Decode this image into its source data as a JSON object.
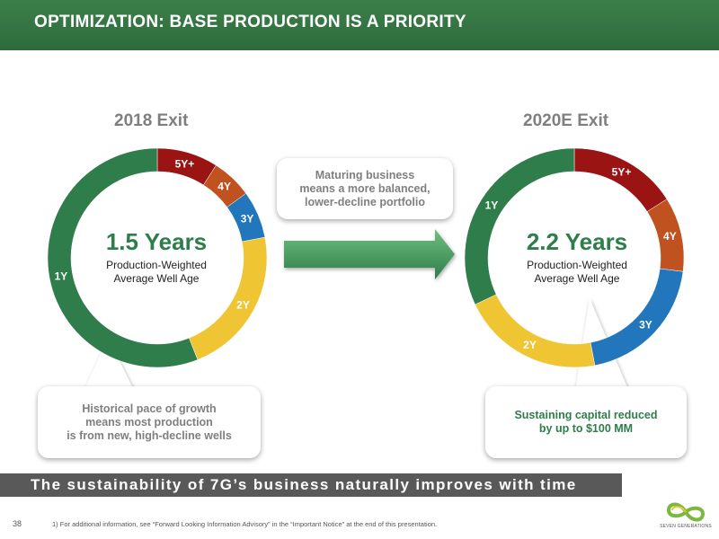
{
  "header": {
    "title": "OPTIMIZATION: BASE PRODUCTION IS A PRIORITY"
  },
  "chart_data": [
    {
      "type": "pie",
      "title": "2018 Exit",
      "categories": [
        "5Y+",
        "4Y",
        "3Y",
        "2Y",
        "1Y"
      ],
      "values": [
        9,
        6,
        7,
        22,
        56
      ],
      "colors": [
        "#9b1414",
        "#c0521f",
        "#2276bb",
        "#f0c534",
        "#2e7d4a"
      ],
      "center_value": "1.5 Years",
      "center_label": [
        "Production-Weighted",
        "Average Well Age"
      ]
    },
    {
      "type": "pie",
      "title": "2020E Exit",
      "categories": [
        "5Y+",
        "4Y",
        "3Y",
        "2Y",
        "1Y"
      ],
      "values": [
        16,
        11,
        20,
        21,
        32
      ],
      "colors": [
        "#9b1414",
        "#c0521f",
        "#2276bb",
        "#f0c534",
        "#2e7d4a"
      ],
      "center_value": "2.2 Years",
      "center_label": [
        "Production-Weighted",
        "Average Well Age"
      ]
    }
  ],
  "callouts": {
    "top_middle": [
      "Maturing business",
      "means a more balanced,",
      "lower-decline portfolio"
    ],
    "bottom_left": [
      "Historical pace of growth",
      "means most production",
      "is from new, high-decline wells"
    ],
    "bottom_right": [
      "Sustaining capital reduced",
      "by up to $100 MM"
    ]
  },
  "banner": {
    "text": "The sustainability of 7G’s business naturally improves with time"
  },
  "footer": {
    "page_number": "38",
    "footnote": "1)   For additional information, see “Forward Looking Information Advisory” in the “Important Notice” at the end of this presentation."
  },
  "logo": {
    "text": "SEVEN GENERATIONS"
  }
}
